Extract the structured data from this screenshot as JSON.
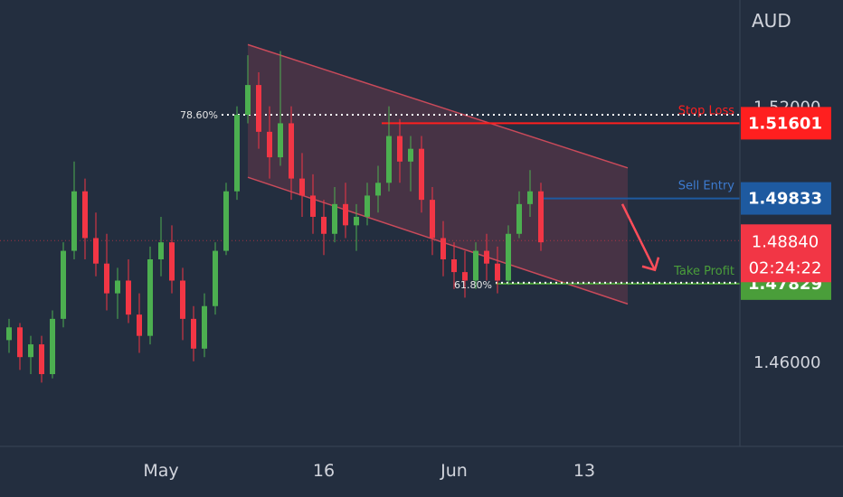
{
  "currency": "AUD",
  "colors": {
    "background": "#232e3f",
    "up": "#4caf50",
    "down": "#f23645",
    "stop": "#ff1f1f",
    "entry": "#1e5aa0",
    "profit": "#4a9e3a",
    "channel": "#c94a5a",
    "arrow": "#ff4d5a"
  },
  "price_axis": {
    "ticks": [
      {
        "value": 1.52,
        "label": "1.52000"
      },
      {
        "value": 1.46,
        "label": "1.46000"
      }
    ]
  },
  "time_axis": {
    "ticks": [
      {
        "label": "May",
        "index": 14
      },
      {
        "label": "16",
        "index": 29
      },
      {
        "label": "Jun",
        "index": 41
      },
      {
        "label": "13",
        "index": 53
      }
    ]
  },
  "levels": {
    "stop_loss": {
      "label": "Stop Loss",
      "price": 1.51601,
      "tag": "1.51601"
    },
    "sell_entry": {
      "label": "Sell Entry",
      "price": 1.49833,
      "tag": "1.49833"
    },
    "take_profit": {
      "label": "Take Profit",
      "price": 1.47829,
      "tag": "1.47829"
    },
    "current": {
      "price": 1.4884,
      "tag": "1.48840",
      "countdown": "02:24:22"
    }
  },
  "fib": {
    "upper": {
      "label": "78.60%",
      "price": 1.518
    },
    "lower": {
      "label": "61.80%",
      "price": 1.4785
    }
  },
  "chart_data": {
    "type": "candlestick",
    "y_unit": "AUD",
    "ylim": [
      1.44,
      1.545
    ],
    "channel": {
      "upper_start": {
        "index": 22,
        "price": 1.5345
      },
      "upper_end": {
        "index": 57,
        "price": 1.5055
      },
      "lower_start": {
        "index": 22,
        "price": 1.5033
      },
      "lower_end": {
        "index": 57,
        "price": 1.4735
      }
    },
    "arrow": {
      "from": {
        "index": 56.5,
        "price": 1.497
      },
      "to": {
        "index": 59.5,
        "price": 1.4815
      }
    },
    "candles": [
      [
        1.465,
        1.47,
        1.462,
        1.468
      ],
      [
        1.468,
        1.469,
        1.458,
        1.461
      ],
      [
        1.461,
        1.466,
        1.457,
        1.464
      ],
      [
        1.464,
        1.466,
        1.455,
        1.457
      ],
      [
        1.457,
        1.472,
        1.456,
        1.47
      ],
      [
        1.47,
        1.488,
        1.468,
        1.486
      ],
      [
        1.486,
        1.507,
        1.484,
        1.5
      ],
      [
        1.5,
        1.503,
        1.484,
        1.489
      ],
      [
        1.489,
        1.495,
        1.48,
        1.483
      ],
      [
        1.483,
        1.49,
        1.472,
        1.476
      ],
      [
        1.476,
        1.482,
        1.47,
        1.479
      ],
      [
        1.479,
        1.484,
        1.469,
        1.471
      ],
      [
        1.471,
        1.476,
        1.462,
        1.466
      ],
      [
        1.466,
        1.487,
        1.464,
        1.484
      ],
      [
        1.484,
        1.494,
        1.48,
        1.488
      ],
      [
        1.488,
        1.492,
        1.476,
        1.479
      ],
      [
        1.479,
        1.482,
        1.465,
        1.47
      ],
      [
        1.47,
        1.473,
        1.46,
        1.463
      ],
      [
        1.463,
        1.476,
        1.461,
        1.473
      ],
      [
        1.473,
        1.488,
        1.471,
        1.486
      ],
      [
        1.486,
        1.502,
        1.485,
        1.5
      ],
      [
        1.5,
        1.52,
        1.498,
        1.518
      ],
      [
        1.518,
        1.532,
        1.516,
        1.525
      ],
      [
        1.525,
        1.528,
        1.51,
        1.514
      ],
      [
        1.514,
        1.52,
        1.503,
        1.508
      ],
      [
        1.508,
        1.533,
        1.506,
        1.516
      ],
      [
        1.516,
        1.52,
        1.498,
        1.503
      ],
      [
        1.503,
        1.509,
        1.494,
        1.499
      ],
      [
        1.499,
        1.504,
        1.49,
        1.494
      ],
      [
        1.494,
        1.498,
        1.485,
        1.49
      ],
      [
        1.49,
        1.501,
        1.488,
        1.497
      ],
      [
        1.497,
        1.502,
        1.489,
        1.492
      ],
      [
        1.492,
        1.497,
        1.486,
        1.494
      ],
      [
        1.494,
        1.502,
        1.492,
        1.499
      ],
      [
        1.499,
        1.506,
        1.495,
        1.502
      ],
      [
        1.502,
        1.52,
        1.5,
        1.513
      ],
      [
        1.513,
        1.517,
        1.502,
        1.507
      ],
      [
        1.507,
        1.513,
        1.5,
        1.51
      ],
      [
        1.51,
        1.513,
        1.495,
        1.498
      ],
      [
        1.498,
        1.501,
        1.485,
        1.489
      ],
      [
        1.489,
        1.493,
        1.48,
        1.484
      ],
      [
        1.484,
        1.488,
        1.477,
        1.481
      ],
      [
        1.481,
        1.486,
        1.475,
        1.479
      ],
      [
        1.479,
        1.488,
        1.477,
        1.486
      ],
      [
        1.486,
        1.49,
        1.479,
        1.483
      ],
      [
        1.483,
        1.487,
        1.476,
        1.479
      ],
      [
        1.479,
        1.492,
        1.478,
        1.49
      ],
      [
        1.49,
        1.5,
        1.489,
        1.497
      ],
      [
        1.497,
        1.505,
        1.494,
        1.5
      ],
      [
        1.5,
        1.502,
        1.486,
        1.488
      ]
    ]
  }
}
